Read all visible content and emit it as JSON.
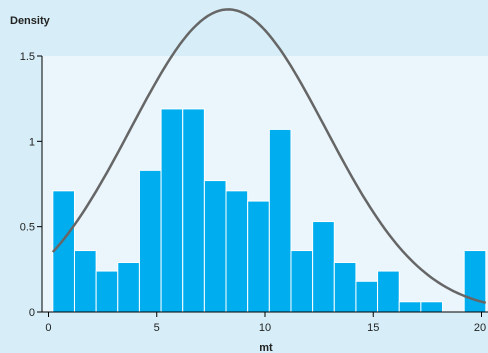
{
  "chart_data": {
    "type": "bar",
    "ylabel": "Density",
    "xlabel": "mt",
    "xlim": [
      -0.3,
      20.3
    ],
    "ylim": [
      0,
      1.5
    ],
    "xticks": [
      0,
      5,
      10,
      15,
      20
    ],
    "yticks": [
      0,
      0.5,
      1,
      1.5
    ],
    "ytick_labels": [
      "0",
      "0.5",
      "1",
      "1.5"
    ],
    "grid": false,
    "colors": {
      "background": "#d7eef8",
      "plot_area": "#eaf6fc",
      "bar_fill": "#00aeef",
      "bar_edge": "#ffffff",
      "curve": "#666666"
    },
    "bins": [
      {
        "x0": 0.2,
        "x1": 1.2,
        "value": 0.71
      },
      {
        "x0": 1.2,
        "x1": 2.2,
        "value": 0.36
      },
      {
        "x0": 2.2,
        "x1": 3.2,
        "value": 0.24
      },
      {
        "x0": 3.2,
        "x1": 4.2,
        "value": 0.29
      },
      {
        "x0": 4.2,
        "x1": 5.2,
        "value": 0.83
      },
      {
        "x0": 5.2,
        "x1": 6.2,
        "value": 1.19
      },
      {
        "x0": 6.2,
        "x1": 7.2,
        "value": 1.19
      },
      {
        "x0": 7.2,
        "x1": 8.2,
        "value": 0.77
      },
      {
        "x0": 8.2,
        "x1": 9.2,
        "value": 0.71
      },
      {
        "x0": 9.2,
        "x1": 10.2,
        "value": 0.65
      },
      {
        "x0": 10.2,
        "x1": 11.2,
        "value": 1.07
      },
      {
        "x0": 11.2,
        "x1": 12.2,
        "value": 0.36
      },
      {
        "x0": 12.2,
        "x1": 13.2,
        "value": 0.53
      },
      {
        "x0": 13.2,
        "x1": 14.2,
        "value": 0.29
      },
      {
        "x0": 14.2,
        "x1": 15.2,
        "value": 0.18
      },
      {
        "x0": 15.2,
        "x1": 16.2,
        "value": 0.24
      },
      {
        "x0": 16.2,
        "x1": 17.2,
        "value": 0.06
      },
      {
        "x0": 17.2,
        "x1": 18.2,
        "value": 0.06
      },
      {
        "x0": 19.2,
        "x1": 20.2,
        "value": 0.36
      }
    ],
    "curve": {
      "type": "normal-density",
      "mean": 8.3,
      "sd": 4.5,
      "x_range": [
        0.2,
        20.2
      ]
    }
  }
}
